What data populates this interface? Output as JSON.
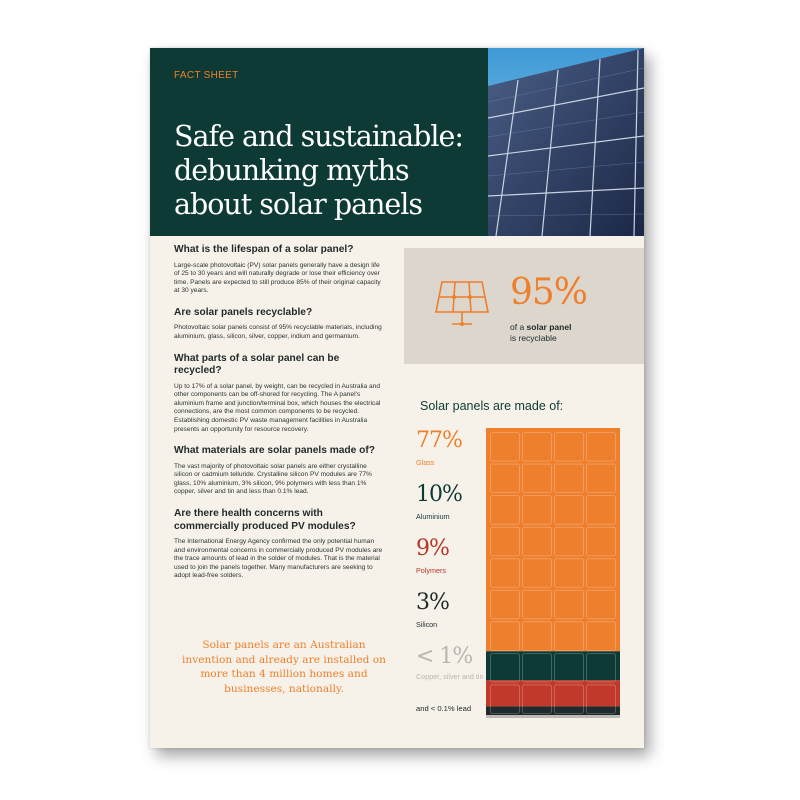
{
  "header": {
    "fact_label": "FACT SHEET",
    "title": "Safe and sustainable: debunking myths about solar panels"
  },
  "sections": [
    {
      "question": "What is the lifespan of a solar panel?",
      "answer": "Large-scale photovoltaic (PV) solar panels generally have a design life of 25 to 30 years and will naturally degrade or lose their efficiency over time. Panels are expected to still produce 85% of their original capacity at 30 years."
    },
    {
      "question": "Are solar panels recyclable?",
      "answer": "Photovoltaic solar panels consist of 95% recyclable materials, including aluminium, glass, silicon, silver, copper, indium and germanium."
    },
    {
      "question": "What parts of a solar panel can be recycled?",
      "answer": "Up to 17% of a solar panel, by weight, can be recycled in Australia and other components can be off-shored for recycling. The A panel's aluminium frame and junction/terminal box, which houses the electrical connections, are the most common components to be recycled. Establishing domestic PV waste management facilities in Australia presents an opportunity for resource recovery."
    },
    {
      "question": "What materials are solar panels made of?",
      "answer": "The vast majority of photovoltaic solar panels are either crystalline silicon or cadmium telluride. Crystalline silicon PV modules are 77% glass, 10% aluminium, 3% silicon, 9% polymers with less than 1% copper, silver and tin and less than 0.1% lead."
    },
    {
      "question": "Are there health concerns with commercially produced PV modules?",
      "answer": "The International Energy Agency confirmed the only potential human and environmental concerns in commercially produced PV modules are the trace amounts of lead in the solder of modules. That is the material used to join the panels together. Many manufacturers are seeking to adopt lead-free solders."
    }
  ],
  "quote": "Solar panels are an Australian invention and already are installed on more than 4 million homes and businesses, nationally.",
  "stat": {
    "value": "95%",
    "text_prefix": "of a ",
    "text_bold": "solar panel",
    "text_suffix": "is recyclable"
  },
  "composition": {
    "title": "Solar panels are made of:",
    "materials": [
      {
        "pct": "77%",
        "label": "Glass",
        "share": 77,
        "color": "#ee7f2d",
        "label_color": "#ee7f2d"
      },
      {
        "pct": "10%",
        "label": "Aluminium",
        "share": 10,
        "color": "#0d3a35",
        "label_color": "#0d3a35"
      },
      {
        "pct": "9%",
        "label": "Polymers",
        "share": 9,
        "color": "#c0392b",
        "label_color": "#b5362a"
      },
      {
        "pct": "3%",
        "label": "Silicon",
        "share": 3,
        "color": "#1f2a2a",
        "label_color": "#1f2a2a"
      },
      {
        "pct": "< 1%",
        "label": "Copper, silver and tin",
        "share": 1,
        "color": "#bdbab4",
        "label_color": "#b8b5ae"
      }
    ],
    "lead_note": "and < 0.1% lead"
  },
  "colors": {
    "dark_green": "#0d3a35",
    "orange": "#ee7f2d",
    "cream": "#f7f2e9",
    "grey_box": "#dcd6cc"
  }
}
